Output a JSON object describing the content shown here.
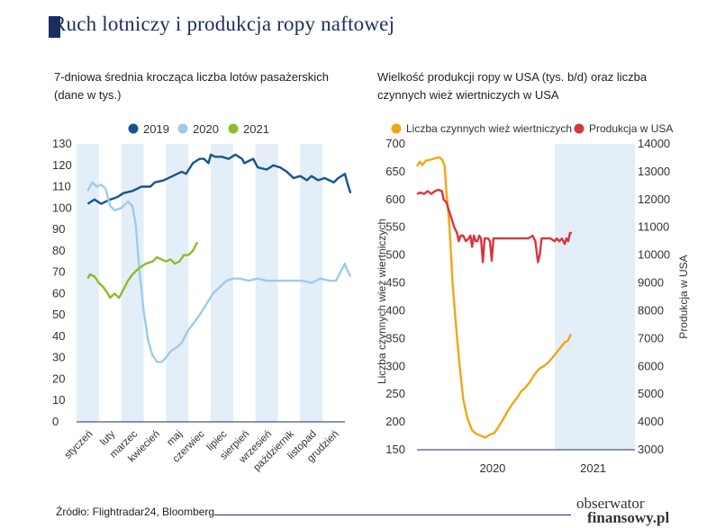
{
  "header": {
    "title": "Ruch lotniczy i produkcja ropy naftowej"
  },
  "footer": {
    "source": "Źródło: Flightradar24, Bloomberg",
    "logo_line1": "obserwator",
    "logo_line2": "finansowy.pl"
  },
  "colors": {
    "navy": "#1b2f5e",
    "s2019": "#17548f",
    "s2020": "#9ecbe8",
    "s2021": "#8cbc2c",
    "rigs": "#f3a516",
    "prod": "#d9363e",
    "band": "#e3eef8"
  },
  "chart_data": [
    {
      "type": "line",
      "title": "7-dniowa średnia krocząca liczba lotów pasażerskich (dane w tys.)",
      "title_line1": "7-dniowa średnia krocząca liczba lotów pasażerskich",
      "title_line2": "(dane w tys.)",
      "categories": [
        "styczeń",
        "luty",
        "marzec",
        "kwiecień",
        "maj",
        "czerwiec",
        "lipiec",
        "sierpień",
        "wrzesień",
        "październik",
        "listopad",
        "grudzień"
      ],
      "yticks": [
        0,
        10,
        20,
        30,
        40,
        50,
        60,
        70,
        80,
        90,
        100,
        110,
        120,
        130
      ],
      "ylim": [
        0,
        130
      ],
      "legend": [
        "2019",
        "2020",
        "2021"
      ],
      "series": [
        {
          "name": "2019",
          "points": [
            [
              0,
              102
            ],
            [
              0.3,
              104
            ],
            [
              0.6,
              102
            ],
            [
              1,
              104
            ],
            [
              1.3,
              105
            ],
            [
              1.6,
              107
            ],
            [
              2,
              108
            ],
            [
              2.4,
              110
            ],
            [
              2.8,
              110
            ],
            [
              3,
              112
            ],
            [
              3.4,
              113
            ],
            [
              3.8,
              115
            ],
            [
              4.2,
              117
            ],
            [
              4.4,
              116
            ],
            [
              4.7,
              121
            ],
            [
              5,
              123
            ],
            [
              5.2,
              123
            ],
            [
              5.4,
              121
            ],
            [
              5.5,
              125
            ],
            [
              5.7,
              124
            ],
            [
              6,
              124
            ],
            [
              6.3,
              123
            ],
            [
              6.6,
              125
            ],
            [
              6.9,
              123
            ],
            [
              7,
              121
            ],
            [
              7.2,
              122
            ],
            [
              7.4,
              123
            ],
            [
              7.6,
              119
            ],
            [
              8,
              118
            ],
            [
              8.3,
              120
            ],
            [
              8.6,
              119
            ],
            [
              8.9,
              117
            ],
            [
              9.2,
              114
            ],
            [
              9.5,
              115
            ],
            [
              9.8,
              113
            ],
            [
              10,
              115
            ],
            [
              10.3,
              113
            ],
            [
              10.6,
              114
            ],
            [
              11,
              112
            ],
            [
              11.2,
              114
            ],
            [
              11.5,
              116
            ],
            [
              11.6,
              112
            ],
            [
              11.75,
              107
            ]
          ]
        },
        {
          "name": "2020",
          "points": [
            [
              0,
              108
            ],
            [
              0.2,
              112
            ],
            [
              0.4,
              110
            ],
            [
              0.6,
              111
            ],
            [
              0.8,
              109
            ],
            [
              1,
              101
            ],
            [
              1.2,
              99
            ],
            [
              1.5,
              100
            ],
            [
              1.8,
              103
            ],
            [
              2,
              101
            ],
            [
              2.15,
              92
            ],
            [
              2.3,
              72
            ],
            [
              2.5,
              52
            ],
            [
              2.7,
              38
            ],
            [
              2.9,
              31
            ],
            [
              3.1,
              28
            ],
            [
              3.3,
              28
            ],
            [
              3.5,
              30
            ],
            [
              3.7,
              33
            ],
            [
              4,
              35
            ],
            [
              4.2,
              37
            ],
            [
              4.5,
              43
            ],
            [
              4.8,
              47
            ],
            [
              5,
              50
            ],
            [
              5.3,
              55
            ],
            [
              5.6,
              60
            ],
            [
              5.9,
              63
            ],
            [
              6.2,
              66
            ],
            [
              6.5,
              67
            ],
            [
              6.8,
              67
            ],
            [
              7.2,
              66
            ],
            [
              7.6,
              67
            ],
            [
              8,
              66
            ],
            [
              8.4,
              66
            ],
            [
              8.8,
              66
            ],
            [
              9.2,
              66
            ],
            [
              9.6,
              66
            ],
            [
              10,
              65
            ],
            [
              10.4,
              67
            ],
            [
              10.8,
              66
            ],
            [
              11.1,
              66
            ],
            [
              11.3,
              70
            ],
            [
              11.5,
              74
            ],
            [
              11.6,
              71
            ],
            [
              11.75,
              68
            ]
          ]
        },
        {
          "name": "2021",
          "points": [
            [
              0,
              67
            ],
            [
              0.1,
              69
            ],
            [
              0.3,
              68
            ],
            [
              0.5,
              65
            ],
            [
              0.7,
              63
            ],
            [
              0.9,
              60
            ],
            [
              1,
              58
            ],
            [
              1.2,
              60
            ],
            [
              1.4,
              58
            ],
            [
              1.6,
              62
            ],
            [
              1.8,
              66
            ],
            [
              2,
              69
            ],
            [
              2.3,
              72
            ],
            [
              2.6,
              74
            ],
            [
              2.9,
              75
            ],
            [
              3.1,
              77
            ],
            [
              3.3,
              76
            ],
            [
              3.5,
              75
            ],
            [
              3.7,
              76
            ],
            [
              3.9,
              74
            ],
            [
              4.1,
              75
            ],
            [
              4.3,
              78
            ],
            [
              4.5,
              78
            ],
            [
              4.7,
              80
            ],
            [
              4.9,
              84
            ]
          ]
        }
      ]
    },
    {
      "type": "line",
      "title": "Wielkość produkcji ropy w USA (tys. b/d) oraz liczba czynnych wież wiertnicznych w USA",
      "title_line1": "Wielkość produkcji ropy w USA (tys. b/d) oraz liczba",
      "title_line2": "czynnych wież wiertniczych w USA",
      "ylabel_left": "Liczba czynnych wież wiertniczych",
      "ylabel_right": "Produkcja w USA",
      "yticks_left": [
        150,
        200,
        250,
        300,
        350,
        400,
        450,
        500,
        550,
        600,
        650,
        700
      ],
      "yticks_right": [
        3000,
        4000,
        5000,
        6000,
        7000,
        8000,
        9000,
        10000,
        11000,
        12000,
        13000,
        14000
      ],
      "ylim_left": [
        150,
        700
      ],
      "ylim_right": [
        3000,
        14000
      ],
      "xlim": [
        2019.0,
        2021.45
      ],
      "xlabels": [
        "2020",
        "2021"
      ],
      "legend": [
        "Liczba czynnych wież wiertniczych",
        "Produkcja w USA"
      ],
      "series": [
        {
          "name": "Liczba czynnych wież wiertniczych",
          "axis": "left",
          "points": [
            [
              2019.0,
              660
            ],
            [
              2019.03,
              668
            ],
            [
              2019.06,
              662
            ],
            [
              2019.1,
              670
            ],
            [
              2019.14,
              671
            ],
            [
              2019.2,
              674
            ],
            [
              2019.25,
              676
            ],
            [
              2019.28,
              672
            ],
            [
              2019.31,
              662
            ],
            [
              2019.33,
              615
            ],
            [
              2019.35,
              580
            ],
            [
              2019.37,
              540
            ],
            [
              2019.4,
              450
            ],
            [
              2019.44,
              370
            ],
            [
              2019.48,
              300
            ],
            [
              2019.52,
              240
            ],
            [
              2019.57,
              205
            ],
            [
              2019.62,
              185
            ],
            [
              2019.67,
              178
            ],
            [
              2019.72,
              175
            ],
            [
              2019.77,
              172
            ],
            [
              2019.8,
              175
            ],
            [
              2019.83,
              178
            ],
            [
              2019.87,
              180
            ],
            [
              2019.92,
              192
            ],
            [
              2019.97,
              205
            ],
            [
              2020.02,
              220
            ],
            [
              2020.07,
              232
            ],
            [
              2020.12,
              242
            ],
            [
              2020.17,
              255
            ],
            [
              2020.22,
              262
            ],
            [
              2020.27,
              272
            ],
            [
              2020.32,
              285
            ],
            [
              2020.37,
              295
            ],
            [
              2020.42,
              300
            ],
            [
              2020.47,
              306
            ],
            [
              2020.52,
              315
            ],
            [
              2020.57,
              325
            ],
            [
              2020.62,
              335
            ],
            [
              2020.66,
              343
            ],
            [
              2020.7,
              347
            ],
            [
              2020.73,
              358
            ]
          ]
        },
        {
          "name": "Produkcja w USA",
          "axis": "right",
          "points": [
            [
              2019.0,
              12200
            ],
            [
              2019.04,
              12250
            ],
            [
              2019.08,
              12200
            ],
            [
              2019.12,
              12300
            ],
            [
              2019.16,
              12200
            ],
            [
              2019.2,
              12300
            ],
            [
              2019.24,
              12350
            ],
            [
              2019.28,
              12300
            ],
            [
              2019.3,
              12000
            ],
            [
              2019.33,
              11900
            ],
            [
              2019.36,
              11600
            ],
            [
              2019.39,
              11300
            ],
            [
              2019.42,
              11000
            ],
            [
              2019.45,
              10800
            ],
            [
              2019.47,
              10500
            ],
            [
              2019.49,
              10700
            ],
            [
              2019.52,
              10700
            ],
            [
              2019.55,
              10500
            ],
            [
              2019.58,
              10600
            ],
            [
              2019.6,
              10700
            ],
            [
              2019.62,
              10300
            ],
            [
              2019.64,
              10700
            ],
            [
              2019.66,
              10500
            ],
            [
              2019.68,
              10500
            ],
            [
              2019.7,
              10700
            ],
            [
              2019.72,
              10600
            ],
            [
              2019.74,
              9750
            ],
            [
              2019.76,
              10600
            ],
            [
              2019.8,
              10600
            ],
            [
              2019.82,
              10500
            ],
            [
              2019.84,
              9800
            ],
            [
              2019.86,
              10600
            ],
            [
              2019.9,
              10600
            ],
            [
              2019.95,
              10600
            ],
            [
              2020.0,
              10600
            ],
            [
              2020.05,
              10600
            ],
            [
              2020.1,
              10600
            ],
            [
              2020.15,
              10600
            ],
            [
              2020.2,
              10600
            ],
            [
              2020.25,
              10600
            ],
            [
              2020.3,
              10700
            ],
            [
              2020.33,
              10500
            ],
            [
              2020.36,
              9750
            ],
            [
              2020.38,
              10000
            ],
            [
              2020.4,
              10600
            ],
            [
              2020.45,
              10600
            ],
            [
              2020.5,
              10600
            ],
            [
              2020.55,
              10500
            ],
            [
              2020.57,
              10600
            ],
            [
              2020.6,
              10500
            ],
            [
              2020.63,
              10600
            ],
            [
              2020.66,
              10400
            ],
            [
              2020.68,
              10600
            ],
            [
              2020.7,
              10500
            ],
            [
              2020.72,
              10800
            ],
            [
              2020.74,
              10800
            ]
          ]
        }
      ]
    }
  ]
}
